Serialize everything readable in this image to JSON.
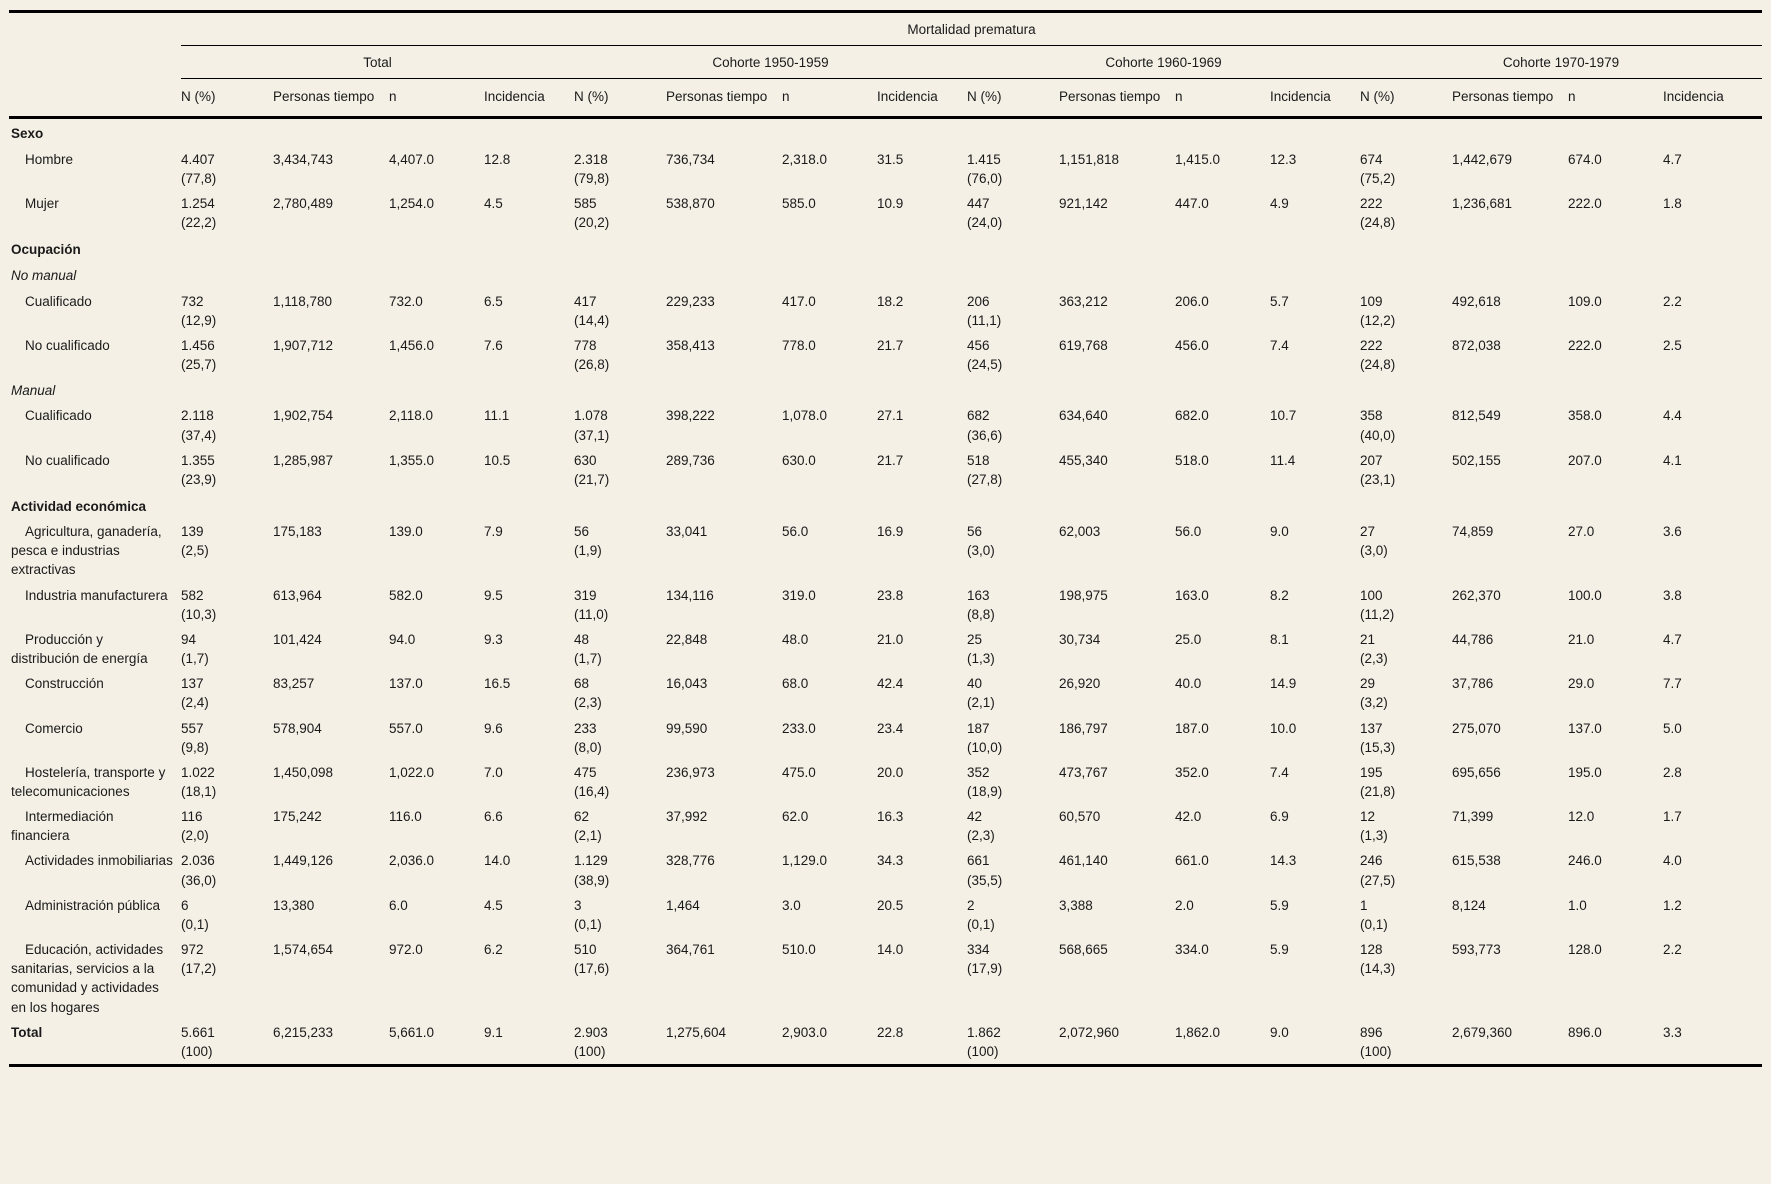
{
  "table": {
    "spanner": "Mortalidad prematura",
    "groups": [
      {
        "label": "Total"
      },
      {
        "label": "Cohorte 1950-1959"
      },
      {
        "label": "Cohorte 1960-1969"
      },
      {
        "label": "Cohorte 1970-1979"
      }
    ],
    "subheaders": [
      "N (%)",
      "Personas tiempo",
      "n",
      "Incidencia"
    ],
    "rows": [
      {
        "type": "section",
        "label": "Sexo"
      },
      {
        "type": "data",
        "label": "Hombre",
        "cells": [
          "4.407\n(77,8)",
          "3,434,743",
          "4,407.0",
          "12.8",
          "2.318\n(79,8)",
          "736,734",
          "2,318.0",
          "31.5",
          "1.415\n(76,0)",
          "1,151,818",
          "1,415.0",
          "12.3",
          "674\n(75,2)",
          "1,442,679",
          "674.0",
          "4.7"
        ]
      },
      {
        "type": "data",
        "label": "Mujer",
        "cells": [
          "1.254\n(22,2)",
          "2,780,489",
          "1,254.0",
          "4.5",
          "585\n(20,2)",
          "538,870",
          "585.0",
          "10.9",
          "447\n(24,0)",
          "921,142",
          "447.0",
          "4.9",
          "222\n(24,8)",
          "1,236,681",
          "222.0",
          "1.8"
        ]
      },
      {
        "type": "section",
        "label": "Ocupación"
      },
      {
        "type": "subsection",
        "label": "No manual"
      },
      {
        "type": "data",
        "label": "Cualificado",
        "cells": [
          "732\n(12,9)",
          "1,118,780",
          "732.0",
          "6.5",
          "417\n(14,4)",
          "229,233",
          "417.0",
          "18.2",
          "206\n(11,1)",
          "363,212",
          "206.0",
          "5.7",
          "109\n(12,2)",
          "492,618",
          "109.0",
          "2.2"
        ]
      },
      {
        "type": "data",
        "label": "No cualificado",
        "cells": [
          "1.456\n(25,7)",
          "1,907,712",
          "1,456.0",
          "7.6",
          "778\n(26,8)",
          "358,413",
          "778.0",
          "21.7",
          "456\n(24,5)",
          "619,768",
          "456.0",
          "7.4",
          "222\n(24,8)",
          "872,038",
          "222.0",
          "2.5"
        ]
      },
      {
        "type": "subsection",
        "label": "Manual"
      },
      {
        "type": "data",
        "label": "Cualificado",
        "cells": [
          "2.118\n(37,4)",
          "1,902,754",
          "2,118.0",
          "11.1",
          "1.078\n(37,1)",
          "398,222",
          "1,078.0",
          "27.1",
          "682\n(36,6)",
          "634,640",
          "682.0",
          "10.7",
          "358\n(40,0)",
          "812,549",
          "358.0",
          "4.4"
        ]
      },
      {
        "type": "data",
        "label": "No cualificado",
        "cells": [
          "1.355\n(23,9)",
          "1,285,987",
          "1,355.0",
          "10.5",
          "630\n(21,7)",
          "289,736",
          "630.0",
          "21.7",
          "518\n(27,8)",
          "455,340",
          "518.0",
          "11.4",
          "207\n(23,1)",
          "502,155",
          "207.0",
          "4.1"
        ]
      },
      {
        "type": "section",
        "label": "Actividad económica"
      },
      {
        "type": "data",
        "label": "Agricultura, ganadería, pesca e industrias extractivas",
        "cells": [
          "139\n(2,5)",
          "175,183",
          "139.0",
          "7.9",
          "56\n(1,9)",
          "33,041",
          "56.0",
          "16.9",
          "56\n(3,0)",
          "62,003",
          "56.0",
          "9.0",
          "27\n(3,0)",
          "74,859",
          "27.0",
          "3.6"
        ]
      },
      {
        "type": "data",
        "label": "Industria manufacturera",
        "cells": [
          "582\n(10,3)",
          "613,964",
          "582.0",
          "9.5",
          "319\n(11,0)",
          "134,116",
          "319.0",
          "23.8",
          "163\n(8,8)",
          "198,975",
          "163.0",
          "8.2",
          "100\n(11,2)",
          "262,370",
          "100.0",
          "3.8"
        ]
      },
      {
        "type": "data",
        "label": "Producción y distribución de energía",
        "cells": [
          "94\n(1,7)",
          "101,424",
          "94.0",
          "9.3",
          "48\n(1,7)",
          "22,848",
          "48.0",
          "21.0",
          "25\n(1,3)",
          "30,734",
          "25.0",
          "8.1",
          "21\n(2,3)",
          "44,786",
          "21.0",
          "4.7"
        ]
      },
      {
        "type": "data",
        "label": "Construcción",
        "cells": [
          "137\n(2,4)",
          "83,257",
          "137.0",
          "16.5",
          "68\n(2,3)",
          "16,043",
          "68.0",
          "42.4",
          "40\n(2,1)",
          "26,920",
          "40.0",
          "14.9",
          "29\n(3,2)",
          "37,786",
          "29.0",
          "7.7"
        ]
      },
      {
        "type": "data",
        "label": "Comercio",
        "cells": [
          "557\n(9,8)",
          "578,904",
          "557.0",
          "9.6",
          "233\n(8,0)",
          "99,590",
          "233.0",
          "23.4",
          "187\n(10,0)",
          "186,797",
          "187.0",
          "10.0",
          "137\n(15,3)",
          "275,070",
          "137.0",
          "5.0"
        ]
      },
      {
        "type": "data",
        "label": "Hostelería, transporte y telecomunicaciones",
        "cells": [
          "1.022\n(18,1)",
          "1,450,098",
          "1,022.0",
          "7.0",
          "475\n(16,4)",
          "236,973",
          "475.0",
          "20.0",
          "352\n(18,9)",
          "473,767",
          "352.0",
          "7.4",
          "195\n(21,8)",
          "695,656",
          "195.0",
          "2.8"
        ]
      },
      {
        "type": "data",
        "label": "Intermediación financiera",
        "cells": [
          "116\n(2,0)",
          "175,242",
          "116.0",
          "6.6",
          "62\n(2,1)",
          "37,992",
          "62.0",
          "16.3",
          "42\n(2,3)",
          "60,570",
          "42.0",
          "6.9",
          "12\n(1,3)",
          "71,399",
          "12.0",
          "1.7"
        ]
      },
      {
        "type": "data",
        "label": "Actividades inmobiliarias",
        "cells": [
          "2.036\n(36,0)",
          "1,449,126",
          "2,036.0",
          "14.0",
          "1.129\n(38,9)",
          "328,776",
          "1,129.0",
          "34.3",
          "661\n(35,5)",
          "461,140",
          "661.0",
          "14.3",
          "246\n(27,5)",
          "615,538",
          "246.0",
          "4.0"
        ]
      },
      {
        "type": "data",
        "label": "Administración pública",
        "cells": [
          "6\n(0,1)",
          "13,380",
          "6.0",
          "4.5",
          "3\n(0,1)",
          "1,464",
          "3.0",
          "20.5",
          "2\n(0,1)",
          "3,388",
          "2.0",
          "5.9",
          "1\n(0,1)",
          "8,124",
          "1.0",
          "1.2"
        ]
      },
      {
        "type": "data",
        "label": "Educación, actividades sanitarias, servicios a la comunidad y actividades en los hogares",
        "cells": [
          "972\n(17,2)",
          "1,574,654",
          "972.0",
          "6.2",
          "510\n(17,6)",
          "364,761",
          "510.0",
          "14.0",
          "334\n(17,9)",
          "568,665",
          "334.0",
          "5.9",
          "128\n(14,3)",
          "593,773",
          "128.0",
          "2.2"
        ]
      },
      {
        "type": "total",
        "label": "Total",
        "cells": [
          "5.661\n(100)",
          "6,215,233",
          "5,661.0",
          "9.1",
          "2.903\n(100)",
          "1,275,604",
          "2,903.0",
          "22.8",
          "1.862\n(100)",
          "2,072,960",
          "1,862.0",
          "9.0",
          "896\n(100)",
          "2,679,360",
          "896.0",
          "3.3"
        ]
      }
    ]
  }
}
